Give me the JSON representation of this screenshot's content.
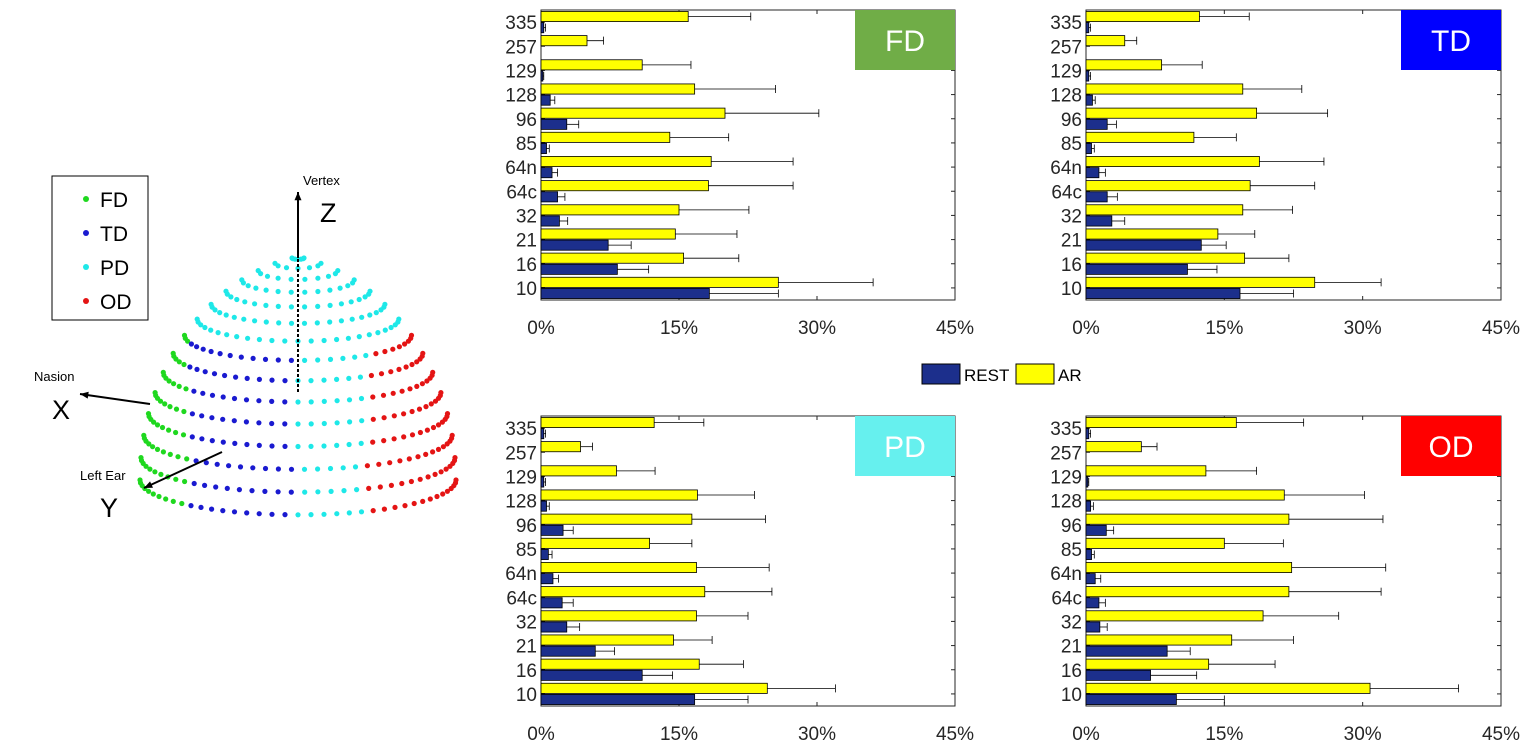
{
  "legend": {
    "rest_label": "REST",
    "ar_label": "AR",
    "rest_color": "#1c2f8c",
    "ar_color": "#ffff00"
  },
  "head_model": {
    "legend": [
      {
        "label": "FD",
        "color": "#1fd81f"
      },
      {
        "label": "TD",
        "color": "#1a1ad0"
      },
      {
        "label": "PD",
        "color": "#1ee8e8"
      },
      {
        "label": "OD",
        "color": "#e41414"
      }
    ],
    "axes": {
      "z_label": "Z",
      "z_caption": "Vertex",
      "x_label": "X",
      "x_caption": "Nasion",
      "y_label": "Y",
      "y_caption": "Left Ear"
    }
  },
  "chart_data": [
    {
      "type": "bar",
      "orientation": "horizontal",
      "region": "FD",
      "badge_color": "#70ad47",
      "badge_text_color": "#ffffff",
      "categories": [
        "335",
        "257",
        "129",
        "128",
        "96",
        "85",
        "64n",
        "64c",
        "32",
        "21",
        "16",
        "10"
      ],
      "xlim": [
        0,
        45
      ],
      "xticks": [
        "0%",
        "15%",
        "30%",
        "45%"
      ],
      "series": [
        {
          "name": "REST",
          "values": [
            0.3,
            0,
            0.2,
            1.0,
            2.8,
            0.6,
            1.2,
            1.8,
            2.0,
            7.3,
            8.3,
            18.3
          ],
          "errors": [
            0.2,
            0,
            0.1,
            0.5,
            1.3,
            0.3,
            0.6,
            0.8,
            0.9,
            2.5,
            3.4,
            7.5
          ]
        },
        {
          "name": "AR",
          "values": [
            16.0,
            5.0,
            11.0,
            16.7,
            20.0,
            14.0,
            18.5,
            18.2,
            15.0,
            14.6,
            15.5,
            25.8
          ],
          "errors": [
            6.8,
            1.8,
            5.3,
            8.8,
            10.2,
            6.4,
            8.9,
            9.2,
            7.6,
            6.7,
            6.0,
            10.3
          ]
        }
      ]
    },
    {
      "type": "bar",
      "orientation": "horizontal",
      "region": "TD",
      "badge_color": "#0000ff",
      "badge_text_color": "#ffffff",
      "categories": [
        "335",
        "257",
        "129",
        "128",
        "96",
        "85",
        "64n",
        "64c",
        "32",
        "21",
        "16",
        "10"
      ],
      "xlim": [
        0,
        45
      ],
      "xticks": [
        "0%",
        "15%",
        "30%",
        "45%"
      ],
      "series": [
        {
          "name": "REST",
          "values": [
            0.3,
            0,
            0.3,
            0.7,
            2.3,
            0.6,
            1.4,
            2.3,
            2.8,
            12.5,
            11.0,
            16.7
          ],
          "errors": [
            0.2,
            0,
            0.2,
            0.3,
            1.0,
            0.3,
            0.7,
            1.1,
            1.4,
            2.7,
            3.2,
            5.8
          ]
        },
        {
          "name": "AR",
          "values": [
            12.3,
            4.2,
            8.2,
            17.0,
            18.5,
            11.7,
            18.8,
            17.8,
            17.0,
            14.3,
            17.2,
            24.8
          ],
          "errors": [
            5.4,
            1.3,
            4.4,
            6.4,
            7.7,
            4.6,
            7.0,
            7.0,
            5.4,
            4.0,
            4.8,
            7.2
          ]
        }
      ]
    },
    {
      "type": "bar",
      "orientation": "horizontal",
      "region": "PD",
      "badge_color": "#66f0ee",
      "badge_text_color": "#ffffff",
      "categories": [
        "335",
        "257",
        "129",
        "128",
        "96",
        "85",
        "64n",
        "64c",
        "32",
        "21",
        "16",
        "10"
      ],
      "xlim": [
        0,
        45
      ],
      "xticks": [
        "0%",
        "15%",
        "30%",
        "45%"
      ],
      "series": [
        {
          "name": "REST",
          "values": [
            0.3,
            0,
            0.3,
            0.6,
            2.4,
            0.8,
            1.3,
            2.3,
            2.8,
            5.9,
            11.0,
            16.7
          ],
          "errors": [
            0.2,
            0,
            0.2,
            0.3,
            1.1,
            0.4,
            0.6,
            1.2,
            1.4,
            2.1,
            3.3,
            5.8
          ]
        },
        {
          "name": "AR",
          "values": [
            12.3,
            4.3,
            8.2,
            17.0,
            16.4,
            11.8,
            16.9,
            17.8,
            16.9,
            14.4,
            17.2,
            24.6
          ],
          "errors": [
            5.4,
            1.3,
            4.2,
            6.2,
            8.0,
            4.6,
            7.9,
            7.3,
            5.6,
            4.2,
            4.8,
            7.4
          ]
        }
      ]
    },
    {
      "type": "bar",
      "orientation": "horizontal",
      "region": "OD",
      "badge_color": "#ff0000",
      "badge_text_color": "#ffffff",
      "categories": [
        "335",
        "257",
        "129",
        "128",
        "96",
        "85",
        "64n",
        "64c",
        "32",
        "21",
        "16",
        "10"
      ],
      "xlim": [
        0,
        45
      ],
      "xticks": [
        "0%",
        "15%",
        "30%",
        "45%"
      ],
      "series": [
        {
          "name": "REST",
          "values": [
            0.3,
            0,
            0.2,
            0.5,
            2.2,
            0.6,
            1.0,
            1.4,
            1.5,
            8.8,
            7.0,
            9.8
          ],
          "errors": [
            0.2,
            0,
            0.1,
            0.3,
            0.8,
            0.3,
            0.6,
            0.7,
            0.8,
            2.5,
            5.0,
            5.2
          ]
        },
        {
          "name": "AR",
          "values": [
            16.3,
            6.0,
            13.0,
            21.5,
            22.0,
            15.0,
            22.3,
            22.0,
            19.2,
            15.8,
            13.3,
            30.8
          ],
          "errors": [
            7.3,
            1.7,
            5.5,
            8.7,
            10.2,
            6.4,
            10.2,
            10.0,
            8.2,
            6.7,
            7.2,
            9.6
          ]
        }
      ]
    }
  ]
}
